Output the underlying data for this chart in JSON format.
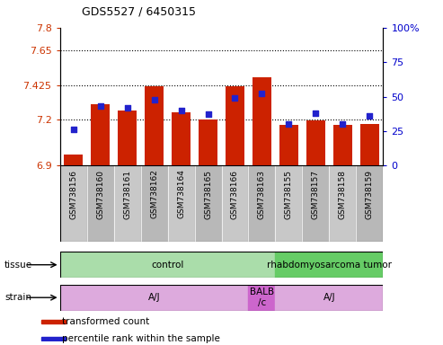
{
  "title": "GDS5527 / 6450315",
  "samples": [
    "GSM738156",
    "GSM738160",
    "GSM738161",
    "GSM738162",
    "GSM738164",
    "GSM738165",
    "GSM738166",
    "GSM738163",
    "GSM738155",
    "GSM738157",
    "GSM738158",
    "GSM738159"
  ],
  "bar_values": [
    6.97,
    7.3,
    7.26,
    7.415,
    7.25,
    7.2,
    7.415,
    7.475,
    7.165,
    7.195,
    7.165,
    7.17
  ],
  "dot_values": [
    26,
    43,
    42,
    48,
    40,
    37,
    49,
    52,
    30,
    38,
    30,
    36
  ],
  "ylim_left": [
    6.9,
    7.8
  ],
  "ylim_right": [
    0,
    100
  ],
  "yticks_left": [
    6.9,
    7.2,
    7.425,
    7.65,
    7.8
  ],
  "ytick_labels_left": [
    "6.9",
    "7.2",
    "7.425",
    "7.65",
    "7.8"
  ],
  "yticks_right": [
    0,
    25,
    50,
    75,
    100
  ],
  "ytick_labels_right": [
    "0",
    "25",
    "50",
    "75",
    "100%"
  ],
  "hlines": [
    7.2,
    7.425,
    7.65
  ],
  "bar_color": "#cc2200",
  "dot_color": "#2222cc",
  "bar_bottom": 6.9,
  "tissue_groups": [
    {
      "label": "control",
      "start": 0,
      "end": 8,
      "color": "#aaddaa"
    },
    {
      "label": "rhabdomyosarcoma tumor",
      "start": 8,
      "end": 12,
      "color": "#66cc66"
    }
  ],
  "strain_groups": [
    {
      "label": "A/J",
      "start": 0,
      "end": 7,
      "color": "#ddaadd"
    },
    {
      "label": "BALB\n/c",
      "start": 7,
      "end": 8,
      "color": "#cc66cc"
    },
    {
      "label": "A/J",
      "start": 8,
      "end": 12,
      "color": "#ddaadd"
    }
  ],
  "legend_items": [
    {
      "label": "transformed count",
      "color": "#cc2200"
    },
    {
      "label": "percentile rank within the sample",
      "color": "#2222cc"
    }
  ],
  "xlabel_bg": "#cccccc",
  "plot_bg": "#ffffff"
}
